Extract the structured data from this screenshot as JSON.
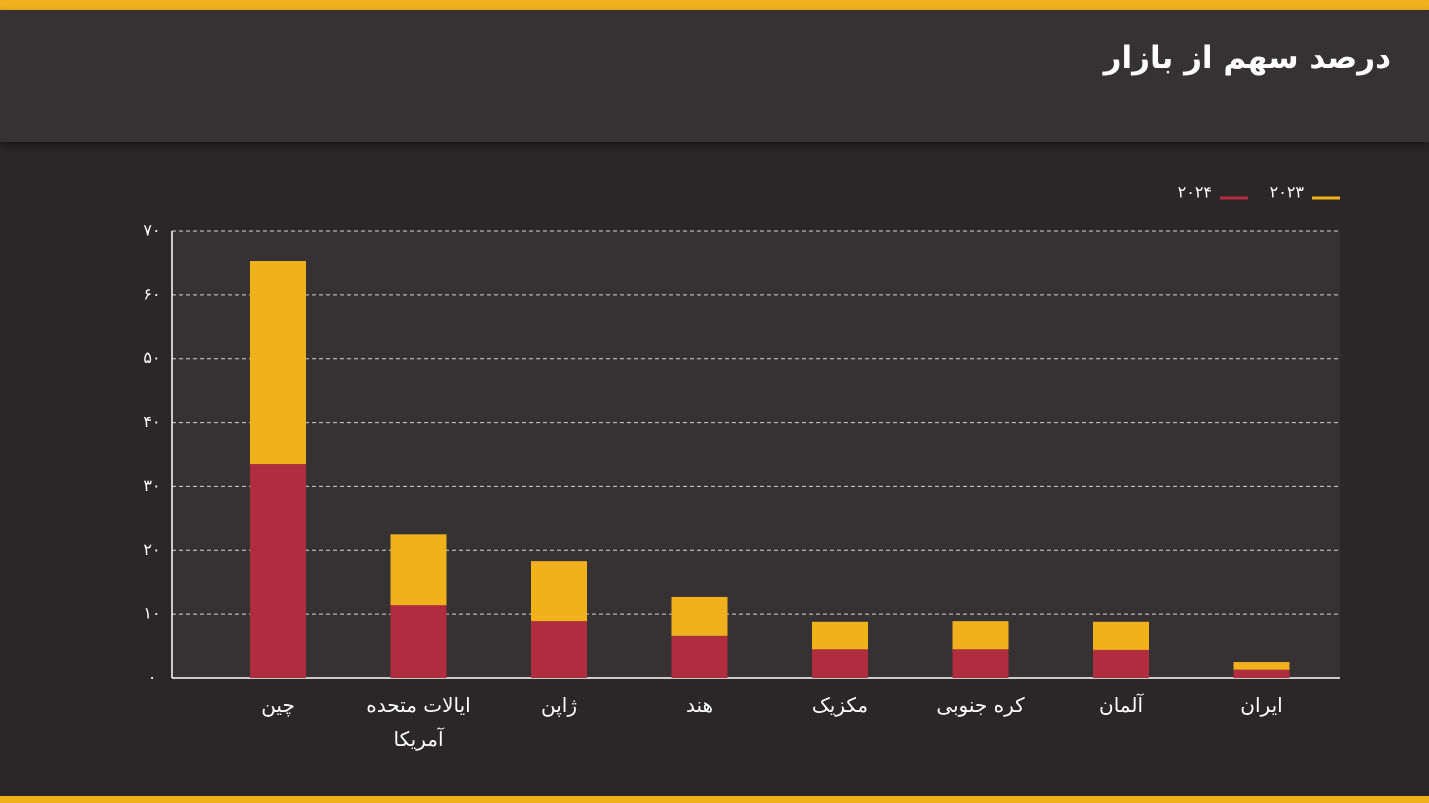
{
  "chart_data": {
    "type": "stacked-bar",
    "title": "درصد سهم از بازار",
    "categories": [
      "چین",
      "ایالات متحده آمریکا",
      "ژاپن",
      "هند",
      "مکزیک",
      "کره جنوبی",
      "آلمان",
      "ایران"
    ],
    "series": [
      {
        "name": "۲۰۲۳",
        "color": "#f0b11d",
        "values": [
          31.8,
          11.1,
          9.4,
          6.1,
          4.3,
          4.4,
          4.4,
          1.2
        ]
      },
      {
        "name": "۲۰۲۴",
        "color": "#b02c3f",
        "values": [
          33.5,
          11.4,
          8.9,
          6.6,
          4.5,
          4.5,
          4.4,
          1.3
        ]
      }
    ],
    "ylim": [
      0,
      70
    ],
    "yticks": [
      {
        "value": 0,
        "label": "۰"
      },
      {
        "value": 10,
        "label": "۱۰"
      },
      {
        "value": 20,
        "label": "۲۰"
      },
      {
        "value": 30,
        "label": "۳۰"
      },
      {
        "value": 40,
        "label": "۴۰"
      },
      {
        "value": 50,
        "label": "۵۰"
      },
      {
        "value": 60,
        "label": "۶۰"
      },
      {
        "value": 70,
        "label": "۷۰"
      }
    ],
    "grid": true
  }
}
